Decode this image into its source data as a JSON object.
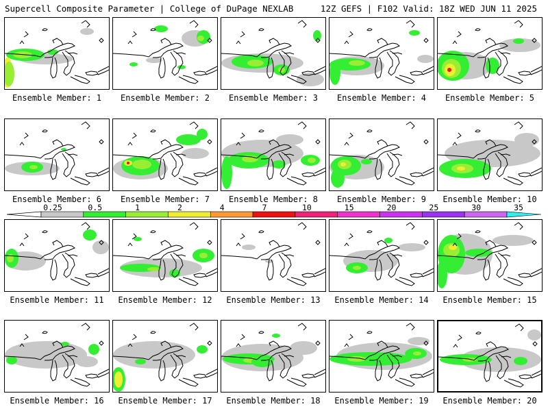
{
  "header": {
    "title_left": "Supercell Composite Parameter | College of DuPage NEXLAB",
    "title_right": "12Z GEFS | F102 Valid: 18Z WED JUN 11 2025"
  },
  "legend": {
    "ticks": [
      "0.25",
      "0.5",
      "1",
      "2",
      "4",
      "7",
      "10",
      "15",
      "20",
      "25",
      "30",
      "35"
    ],
    "colors": [
      "#c8c8c8",
      "#33ee33",
      "#99ee33",
      "#eeee33",
      "#ff9933",
      "#ee1111",
      "#ee2277",
      "#ee33cc",
      "#cc33ee",
      "#9933ee",
      "#cc66ee",
      "#33eeee"
    ]
  },
  "members": [
    {
      "label": "Ensemble Member: 1"
    },
    {
      "label": "Ensemble Member: 2"
    },
    {
      "label": "Ensemble Member: 3"
    },
    {
      "label": "Ensemble Member: 4"
    },
    {
      "label": "Ensemble Member: 5"
    },
    {
      "label": "Ensemble Member: 6"
    },
    {
      "label": "Ensemble Member: 7"
    },
    {
      "label": "Ensemble Member: 8"
    },
    {
      "label": "Ensemble Member: 9"
    },
    {
      "label": "Ensemble Member: 10"
    },
    {
      "label": "Ensemble Member: 11"
    },
    {
      "label": "Ensemble Member: 12"
    },
    {
      "label": "Ensemble Member: 13"
    },
    {
      "label": "Ensemble Member: 14"
    },
    {
      "label": "Ensemble Member: 15"
    },
    {
      "label": "Ensemble Member: 16"
    },
    {
      "label": "Ensemble Member: 17"
    },
    {
      "label": "Ensemble Member: 18"
    },
    {
      "label": "Ensemble Member: 19"
    },
    {
      "label": "Ensemble Member: 20"
    }
  ],
  "selected_member": 20
}
